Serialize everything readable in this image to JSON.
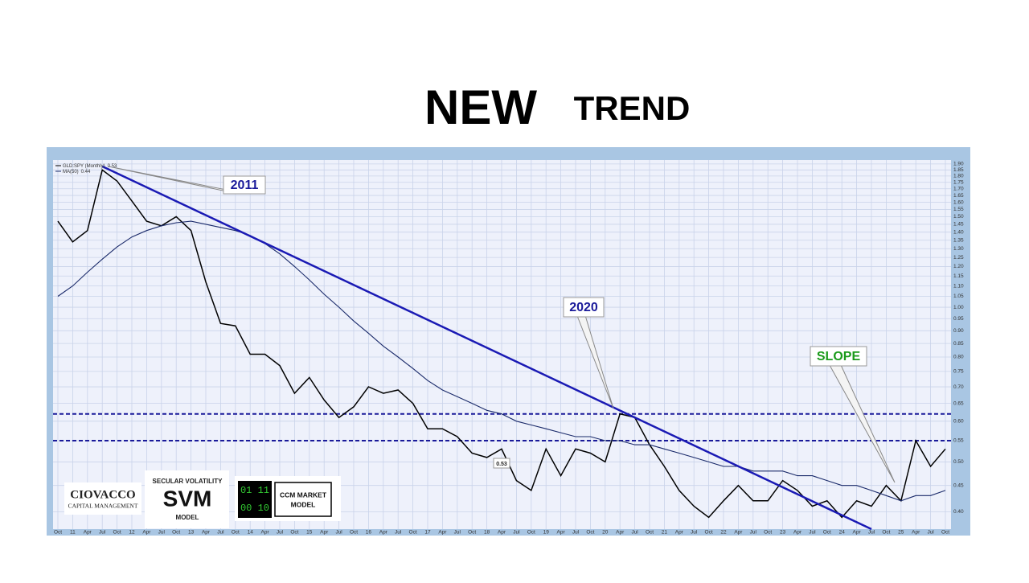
{
  "header": {
    "title_big": "NEW",
    "title_small": "TREND"
  },
  "chart_data": {
    "type": "line",
    "categories": [
      "Oct",
      "11",
      "Apr",
      "Jul",
      "Oct",
      "12",
      "Apr",
      "Jul",
      "Oct",
      "13",
      "Apr",
      "Jul",
      "Oct",
      "14",
      "Apr",
      "Jul",
      "Oct",
      "15",
      "Apr",
      "Jul",
      "Oct",
      "16",
      "Apr",
      "Jul",
      "Oct",
      "17",
      "Apr",
      "Jul",
      "Oct",
      "18",
      "Apr",
      "Jul",
      "Oct",
      "19",
      "Apr",
      "Jul",
      "Oct",
      "20",
      "Apr",
      "Jul",
      "Oct",
      "21",
      "Apr",
      "Jul",
      "Oct",
      "22",
      "Apr",
      "Jul",
      "Oct",
      "23",
      "Apr",
      "Jul",
      "Oct",
      "24",
      "Apr",
      "Jul",
      "Oct",
      "25",
      "Apr",
      "Jul",
      "Oct"
    ],
    "series": [
      {
        "name": "GLD:SPY (Monthly)",
        "last_label": "0.53",
        "color": "#000000",
        "values": [
          1.47,
          1.34,
          1.41,
          1.85,
          1.76,
          1.61,
          1.47,
          1.44,
          1.5,
          1.41,
          1.12,
          0.93,
          0.92,
          0.81,
          0.81,
          0.77,
          0.68,
          0.73,
          0.66,
          0.61,
          0.64,
          0.7,
          0.68,
          0.69,
          0.65,
          0.58,
          0.58,
          0.56,
          0.52,
          0.51,
          0.53,
          0.46,
          0.44,
          0.53,
          0.47,
          0.53,
          0.52,
          0.5,
          0.62,
          0.61,
          0.54,
          0.49,
          0.44,
          0.41,
          0.39,
          0.42,
          0.45,
          0.42,
          0.42,
          0.46,
          0.44,
          0.41,
          0.42,
          0.39,
          0.42,
          0.41,
          0.45,
          0.42,
          0.55,
          0.49,
          0.53
        ]
      },
      {
        "name": "MA(50)",
        "last_label": "0.44",
        "color": "#1a2a6a",
        "values": [
          1.05,
          1.1,
          1.17,
          1.24,
          1.31,
          1.37,
          1.41,
          1.44,
          1.46,
          1.47,
          1.45,
          1.43,
          1.41,
          1.38,
          1.33,
          1.27,
          1.2,
          1.13,
          1.06,
          1.0,
          0.94,
          0.89,
          0.84,
          0.8,
          0.76,
          0.72,
          0.69,
          0.67,
          0.65,
          0.63,
          0.62,
          0.6,
          0.59,
          0.58,
          0.57,
          0.56,
          0.56,
          0.55,
          0.55,
          0.54,
          0.54,
          0.53,
          0.52,
          0.51,
          0.5,
          0.49,
          0.49,
          0.48,
          0.48,
          0.48,
          0.47,
          0.47,
          0.46,
          0.45,
          0.45,
          0.44,
          0.43,
          0.42,
          0.43,
          0.43,
          0.44
        ]
      }
    ],
    "log_scale": true,
    "grid": true,
    "ylim": [
      0.37,
      1.92
    ],
    "yticks": [
      {
        "value": 0.4,
        "label": "0.40"
      },
      {
        "value": 0.45,
        "label": "0.45"
      },
      {
        "value": 0.5,
        "label": "0.50"
      },
      {
        "value": 0.55,
        "label": "0.55"
      },
      {
        "value": 0.6,
        "label": "0.60"
      },
      {
        "value": 0.65,
        "label": "0.65"
      },
      {
        "value": 0.7,
        "label": "0.70"
      },
      {
        "value": 0.75,
        "label": "0.75"
      },
      {
        "value": 0.8,
        "label": "0.80"
      },
      {
        "value": 0.85,
        "label": "0.85"
      },
      {
        "value": 0.9,
        "label": "0.90"
      },
      {
        "value": 0.95,
        "label": "0.95"
      },
      {
        "value": 1,
        "label": "1.00"
      },
      {
        "value": 1.05,
        "label": "1.05"
      },
      {
        "value": 1.1,
        "label": "1.10"
      },
      {
        "value": 1.15,
        "label": "1.15"
      },
      {
        "value": 1.2,
        "label": "1.20"
      },
      {
        "value": 1.25,
        "label": "1.25"
      },
      {
        "value": 1.3,
        "label": "1.30"
      },
      {
        "value": 1.35,
        "label": "1.35"
      },
      {
        "value": 1.4,
        "label": "1.40"
      },
      {
        "value": 1.45,
        "label": "1.45"
      },
      {
        "value": 1.5,
        "label": "1.50"
      },
      {
        "value": 1.55,
        "label": "1.55"
      },
      {
        "value": 1.6,
        "label": "1.60"
      },
      {
        "value": 1.65,
        "label": "1.65"
      },
      {
        "value": 1.7,
        "label": "1.70"
      },
      {
        "value": 1.75,
        "label": "1.75"
      },
      {
        "value": 1.8,
        "label": "1.80"
      },
      {
        "value": 1.85,
        "label": "1.85"
      },
      {
        "value": 1.9,
        "label": "1.90"
      }
    ],
    "reference_lines": [
      0.62,
      0.55
    ],
    "reference_color": "#1a1a9a",
    "trend_line": [
      1.88,
      0.37
    ],
    "trend_color": "#1a1ab4",
    "annotations": [
      "2011",
      "2020",
      "SLOPE",
      "0.53"
    ]
  },
  "logos": {
    "ciovacco": "CIOVACCO",
    "capital": "CAPITAL MANAGEMENT",
    "svm_top": "SECULAR VOLATILITY",
    "svm": "SVM",
    "svm_bottom": "MODEL",
    "bits_top": "01 11",
    "bits_bottom": "00 10",
    "ccm_top": "CCM MARKET",
    "ccm_bottom": "MODEL"
  }
}
